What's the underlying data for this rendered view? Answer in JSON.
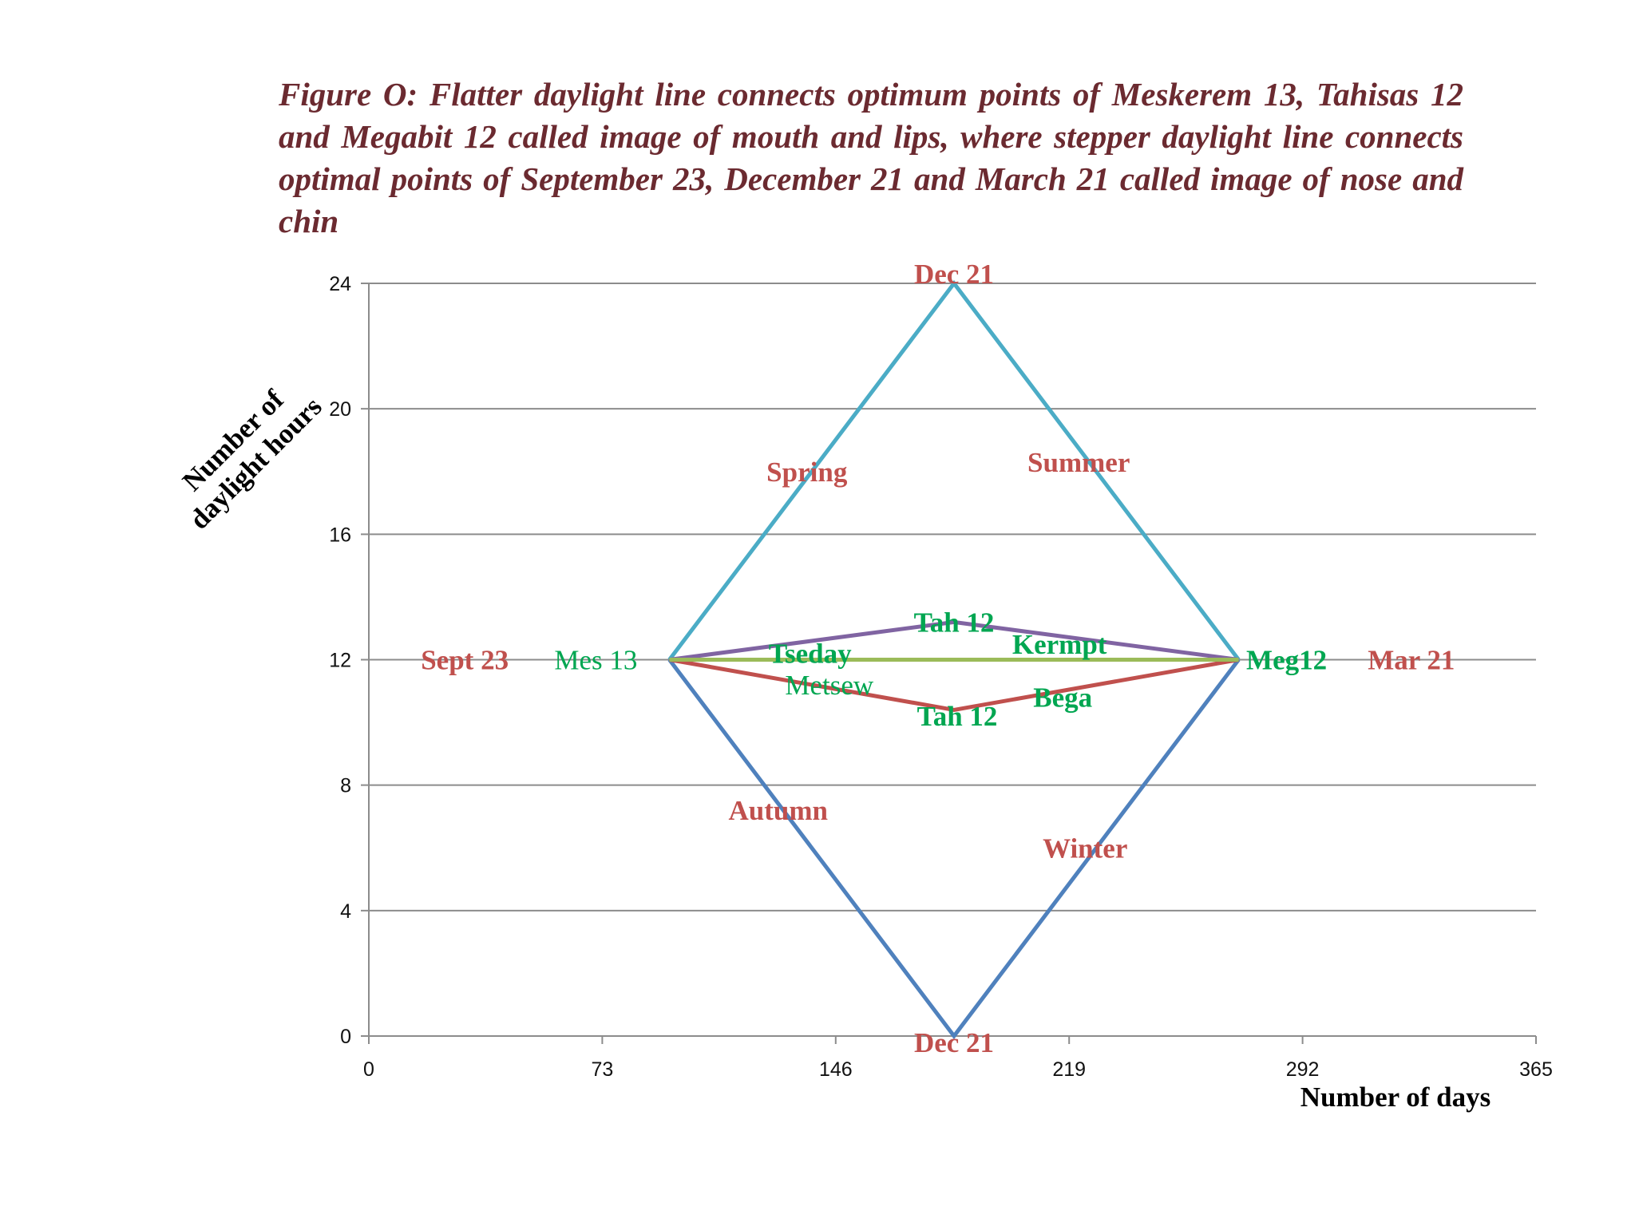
{
  "caption": "Figure O: Flatter daylight line connects optimum points of Meskerem 13, Tahisas 12 and Megabit 12 called image of mouth and lips, where stepper daylight line connects optimal points of September 23, December 21 and March 21 called image of nose and chin",
  "chart_data": {
    "type": "line",
    "xlabel": "Number of days",
    "ylabel_lines": [
      "Number of",
      "daylight hours"
    ],
    "xlim": [
      0,
      365
    ],
    "ylim": [
      0,
      24
    ],
    "xticks": [
      "0",
      "73",
      "146",
      "219",
      "292",
      "365"
    ],
    "yticks": [
      "0",
      "4",
      "8",
      "12",
      "16",
      "20",
      "24"
    ],
    "grid": true,
    "series": [
      {
        "color": "#4bacc6",
        "points": [
          [
            94,
            12
          ],
          [
            183,
            24
          ],
          [
            272,
            12
          ]
        ]
      },
      {
        "color": "#4f81bd",
        "points": [
          [
            94,
            12
          ],
          [
            183,
            0
          ],
          [
            272,
            12
          ]
        ]
      },
      {
        "color": "#8064a2",
        "points": [
          [
            94,
            12
          ],
          [
            183,
            13.2
          ],
          [
            272,
            12
          ]
        ]
      },
      {
        "color": "#c0504d",
        "points": [
          [
            94,
            12
          ],
          [
            183,
            10.4
          ],
          [
            272,
            12
          ]
        ]
      },
      {
        "color": "#9bbb59",
        "points": [
          [
            94,
            12
          ],
          [
            272,
            12
          ]
        ]
      }
    ],
    "annotations": [
      {
        "text": "Dec 21",
        "x": 183,
        "y": 24.3,
        "color": "#c0504d",
        "bold": true
      },
      {
        "text": "Spring",
        "x": 137,
        "y": 18.0,
        "color": "#c0504d",
        "bold": true
      },
      {
        "text": "Summer",
        "x": 222,
        "y": 18.3,
        "color": "#c0504d",
        "bold": true
      },
      {
        "text": "Tah 12",
        "x": 183,
        "y": 13.2,
        "color": "#00a651",
        "bold": true
      },
      {
        "text": "Kermpt",
        "x": 216,
        "y": 12.5,
        "color": "#00a651",
        "bold": true
      },
      {
        "text": "Tseday",
        "x": 138,
        "y": 12.2,
        "color": "#00a651",
        "bold": true
      },
      {
        "text": "Sept 23",
        "x": 30,
        "y": 12.0,
        "color": "#c0504d",
        "bold": true
      },
      {
        "text": "Mes 13",
        "x": 71,
        "y": 12.0,
        "color": "#00a651",
        "bold": false
      },
      {
        "text": "Meg12",
        "x": 287,
        "y": 12.0,
        "color": "#00a651",
        "bold": true
      },
      {
        "text": "Mar 21",
        "x": 326,
        "y": 12.0,
        "color": "#c0504d",
        "bold": true
      },
      {
        "text": "Metsew",
        "x": 144,
        "y": 11.2,
        "color": "#00a651",
        "bold": false
      },
      {
        "text": "Bega",
        "x": 217,
        "y": 10.8,
        "color": "#00a651",
        "bold": true
      },
      {
        "text": "Tah 12",
        "x": 184,
        "y": 10.2,
        "color": "#00a651",
        "bold": true
      },
      {
        "text": "Autumn",
        "x": 128,
        "y": 7.2,
        "color": "#c0504d",
        "bold": true
      },
      {
        "text": "Winter",
        "x": 224,
        "y": 6.0,
        "color": "#c0504d",
        "bold": true
      },
      {
        "text": "Dec 21",
        "x": 183,
        "y": -0.2,
        "color": "#c0504d",
        "bold": true
      }
    ]
  }
}
